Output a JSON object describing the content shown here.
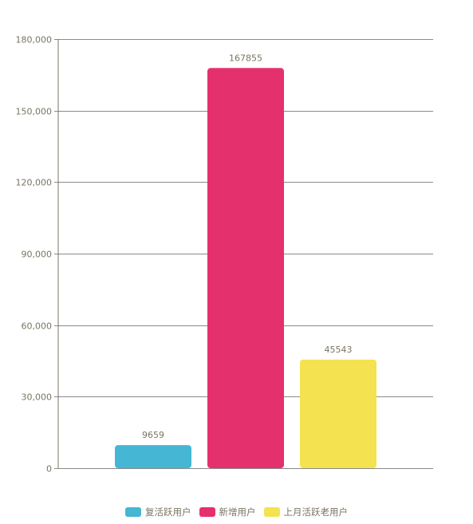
{
  "chart_data": {
    "type": "bar",
    "categories": [
      "复活跃用户",
      "新增用户",
      "上月活跃老用户"
    ],
    "values": [
      9659,
      167855,
      45543
    ],
    "data_labels": [
      "9659",
      "167855",
      "45543"
    ],
    "colors": [
      "#45b6d4",
      "#e5306e",
      "#f4e250"
    ],
    "ylim": [
      0,
      180000
    ],
    "yticks": [
      0,
      30000,
      60000,
      90000,
      120000,
      150000,
      180000
    ],
    "ytick_labels": [
      "0",
      "30,000",
      "60,000",
      "90,000",
      "120,000",
      "150,000",
      "180,000"
    ],
    "grid": true,
    "legend_position": "bottom-center",
    "legend": [
      "复活跃用户",
      "新增用户",
      "上月活跃老用户"
    ]
  }
}
